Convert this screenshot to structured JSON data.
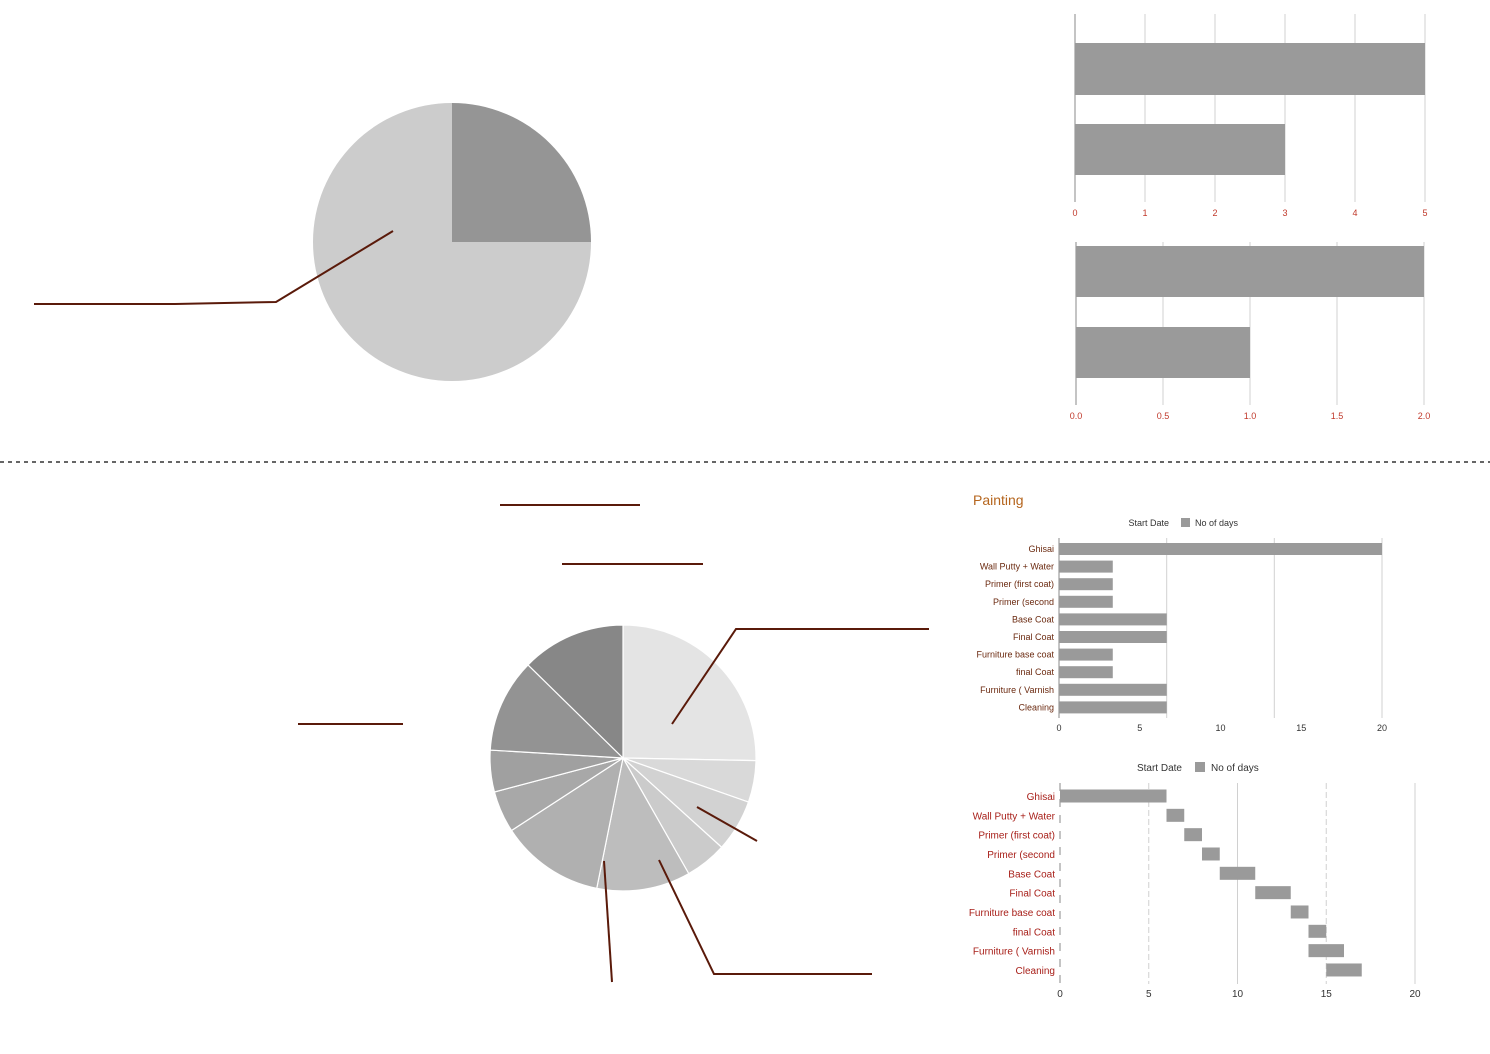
{
  "colors": {
    "bar": "#9a9a9a",
    "grid": "#d0d0d0",
    "axis": "#8a8a8a",
    "leader": "#5a1a0a",
    "tick_red": "#c0392b",
    "label_brown": "#6b2a10",
    "label_red": "#a8201a",
    "title": "#b5651d",
    "divider": "#333333"
  },
  "chart_data": [
    {
      "type": "pie",
      "id": "pie-top",
      "values": [
        25,
        75
      ],
      "colors": [
        "#959595",
        "#cccccc"
      ],
      "start_angle_deg": 0
    },
    {
      "type": "bar",
      "id": "bar-top-1",
      "orientation": "horizontal",
      "values": [
        5,
        3
      ],
      "xlim": [
        0,
        5
      ],
      "ticks": [
        "0",
        "1",
        "2",
        "3",
        "4",
        "5"
      ]
    },
    {
      "type": "bar",
      "id": "bar-top-2",
      "orientation": "horizontal",
      "values": [
        2.0,
        1.0
      ],
      "xlim": [
        0,
        2
      ],
      "ticks": [
        "0.0",
        "0.5",
        "1.0",
        "1.5",
        "2.0"
      ]
    },
    {
      "type": "pie",
      "id": "pie-bottom",
      "values": [
        20,
        4,
        5,
        4,
        9,
        10,
        4,
        4,
        9,
        10
      ],
      "colors": [
        "#e4e4e4",
        "#d9d9d9",
        "#d2d2d2",
        "#cbcbcb",
        "#bdbdbd",
        "#b0b0b0",
        "#a8a8a8",
        "#a0a0a0",
        "#939393",
        "#878787"
      ],
      "start_angle_deg": 0
    },
    {
      "type": "bar",
      "id": "bar-painting",
      "orientation": "horizontal",
      "title": "Painting",
      "legend": [
        "Start Date",
        "No of days"
      ],
      "categories": [
        "Ghisai",
        "Wall Putty + Water",
        "Primer (first coat)",
        "Primer (second",
        "Base Coat",
        "Final Coat",
        "Furniture base coat",
        "final Coat",
        "Furniture ( Varnish",
        "Cleaning"
      ],
      "values": [
        20,
        3.33,
        3.33,
        3.33,
        6.67,
        6.67,
        3.33,
        3.33,
        6.67,
        6.67
      ],
      "xlim": [
        0,
        20
      ],
      "ticks": [
        "0",
        "5",
        "10",
        "15",
        "20"
      ]
    },
    {
      "type": "bar",
      "id": "bar-gantt",
      "orientation": "horizontal",
      "stacked": true,
      "legend": [
        "Start Date",
        "No of days"
      ],
      "categories": [
        "Ghisai",
        "Wall Putty + Water",
        "Primer (first coat)",
        "Primer (second",
        "Base Coat",
        "Final Coat",
        "Furniture base coat",
        "final Coat",
        "Furniture ( Varnish",
        "Cleaning"
      ],
      "series": [
        {
          "name": "Start Date",
          "values": [
            0,
            6,
            7,
            8,
            9,
            11,
            13,
            14,
            14,
            15
          ]
        },
        {
          "name": "No of days",
          "values": [
            6,
            1,
            1,
            1,
            2,
            2,
            1,
            1,
            2,
            2
          ]
        }
      ],
      "xlim": [
        0,
        20
      ],
      "ticks": [
        "0",
        "5",
        "10",
        "15",
        "20"
      ]
    }
  ]
}
